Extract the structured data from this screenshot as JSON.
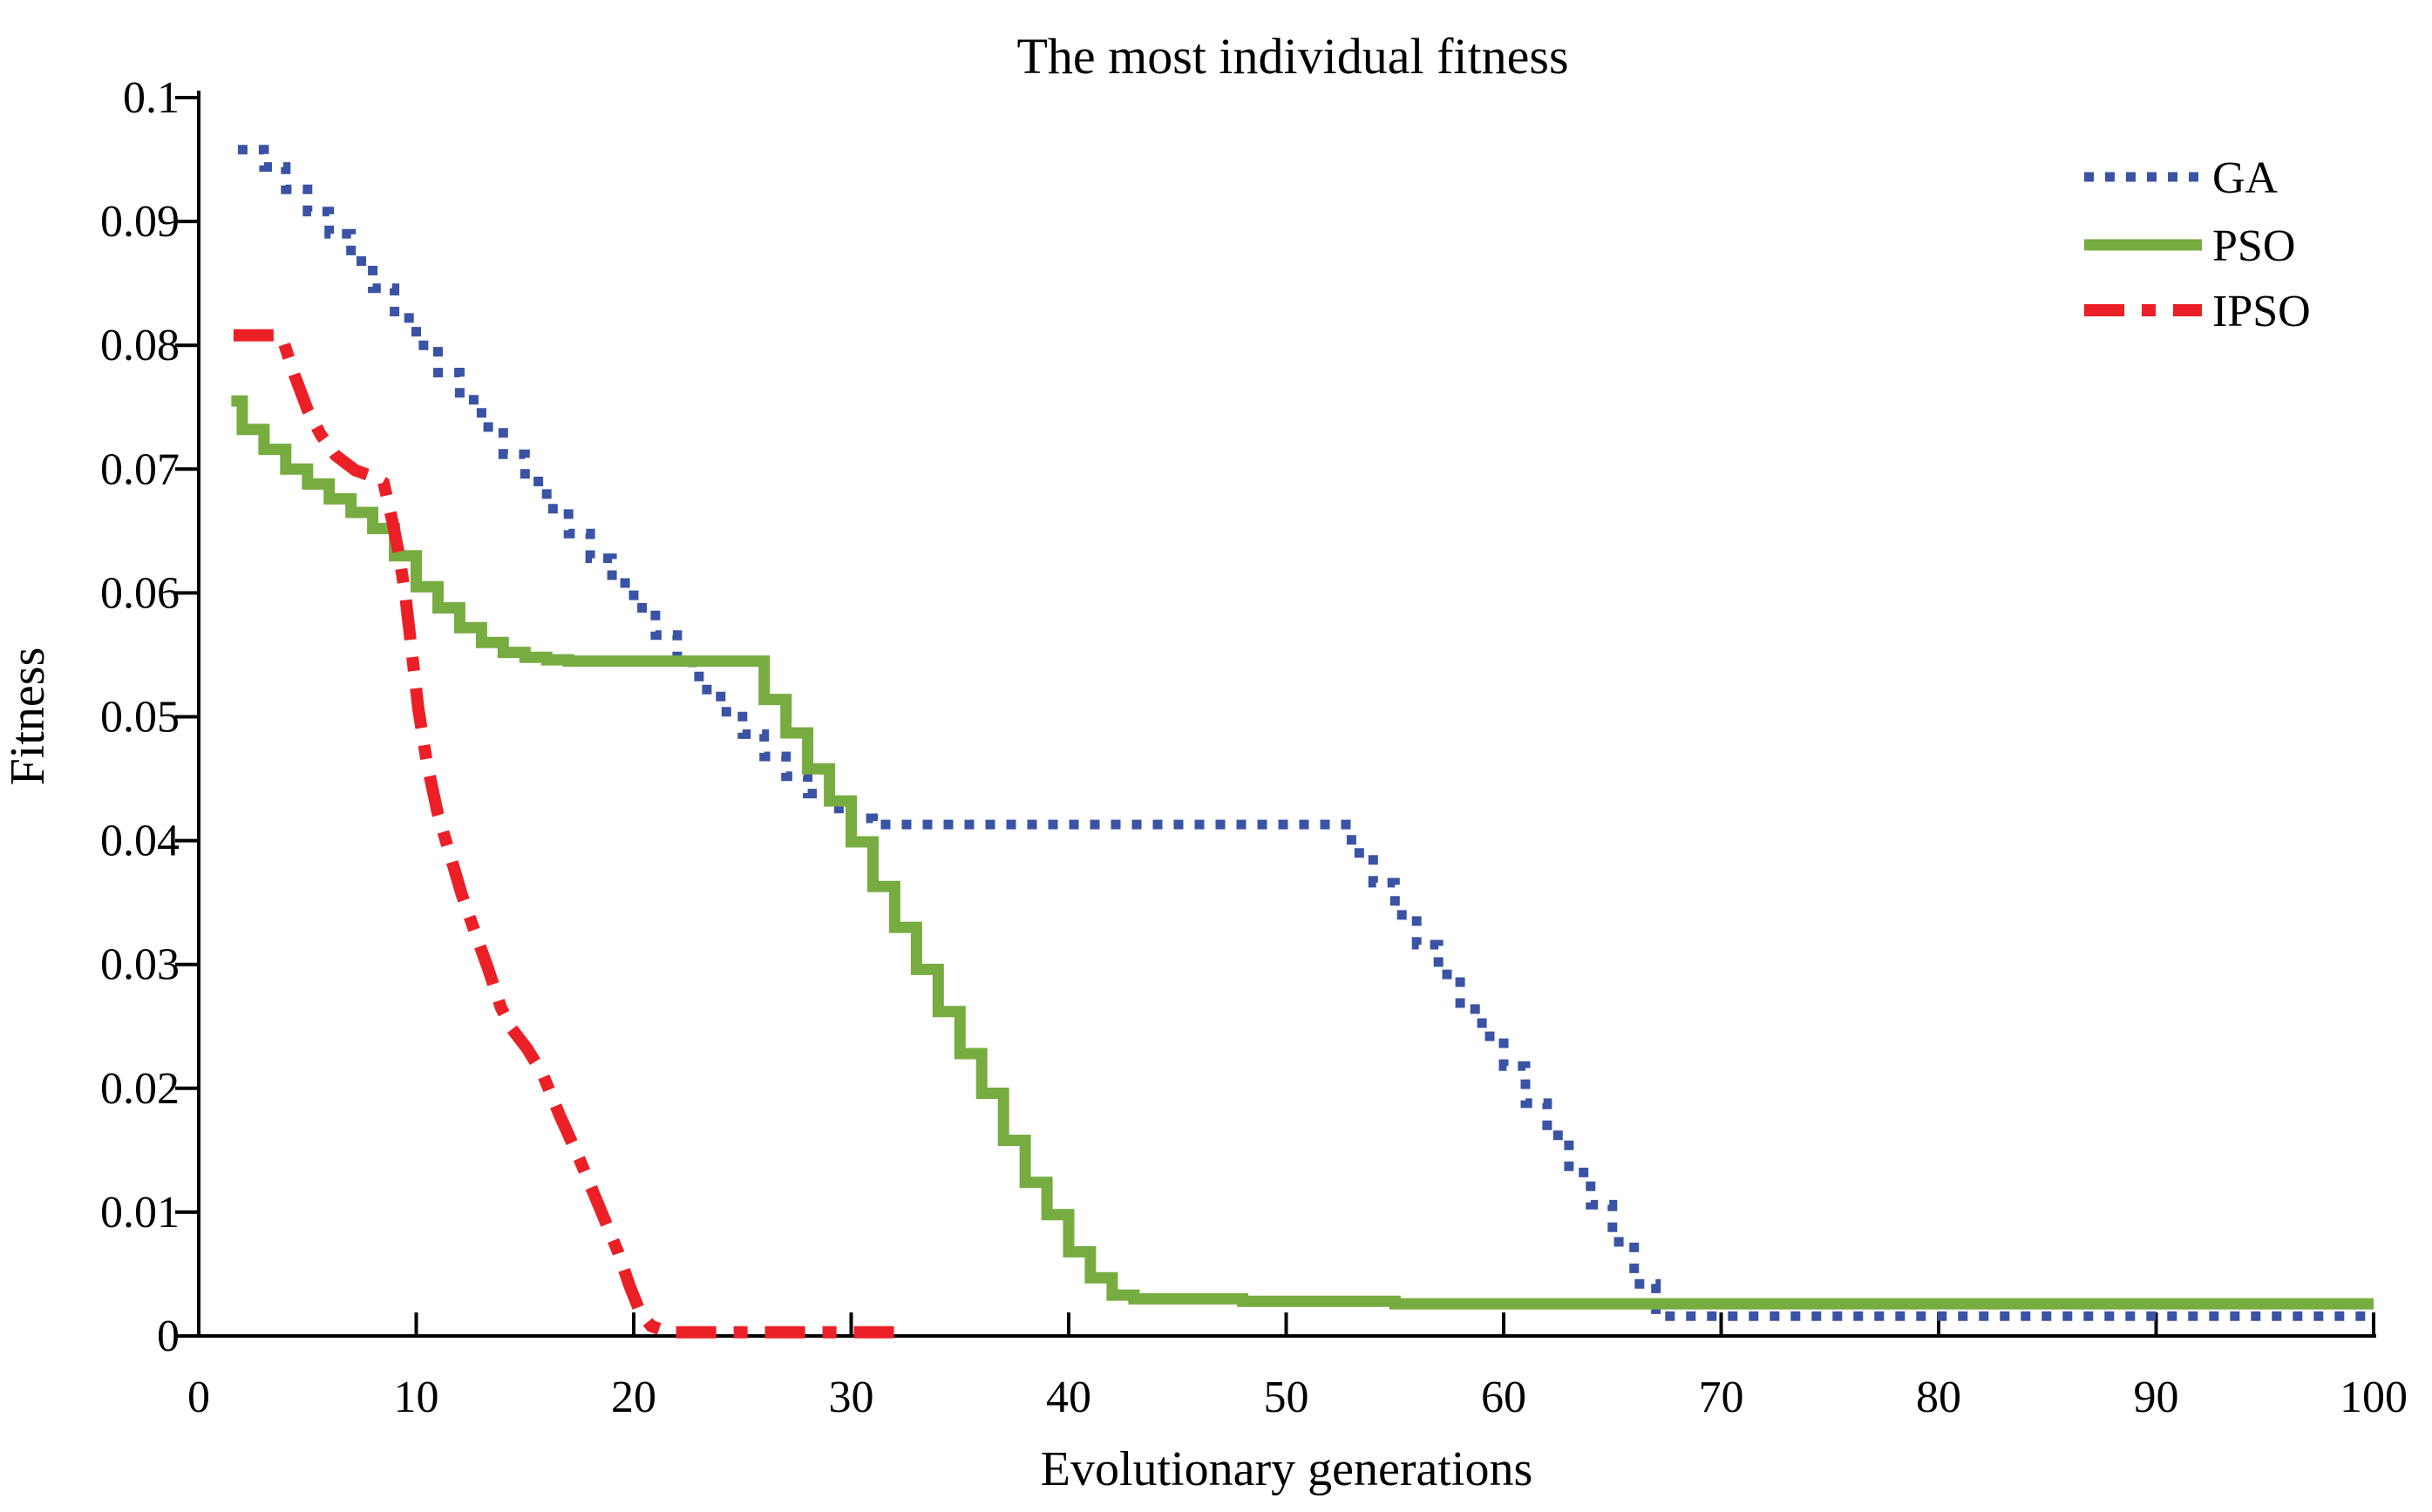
{
  "chart_data": {
    "type": "line",
    "title": "The most individual fitness",
    "xlabel": "Evolutionary generations",
    "ylabel": "Fitness",
    "xlim": [
      0,
      100
    ],
    "ylim": [
      0,
      0.1
    ],
    "xticks": [
      0,
      10,
      20,
      30,
      40,
      50,
      60,
      70,
      80,
      90,
      100
    ],
    "yticks": [
      0,
      0.01,
      0.02,
      0.03,
      0.04,
      0.05,
      0.06,
      0.07,
      0.08,
      0.09,
      0.1
    ],
    "ytick_labels": [
      "0",
      "0.01",
      "0.02",
      "0.03",
      "0.04",
      "0.05",
      "0.06",
      "0.07",
      "0.08",
      "0.09",
      "0.1"
    ],
    "grid": false,
    "legend_position": "top-right-inside-no-box",
    "axis_color": "#000000",
    "background_color": "#ffffff",
    "series": [
      {
        "name": "GA",
        "color": "#3A53A4",
        "line_style": "dotted",
        "dash": "11 13",
        "width": 11,
        "step": true,
        "points": [
          [
            1.8,
            0.0958
          ],
          [
            3,
            0.0944
          ],
          [
            4,
            0.0926
          ],
          [
            5,
            0.0908
          ],
          [
            6,
            0.089
          ],
          [
            7,
            0.0868
          ],
          [
            8,
            0.0846
          ],
          [
            9,
            0.0822
          ],
          [
            10,
            0.08
          ],
          [
            11,
            0.0778
          ],
          [
            12,
            0.0756
          ],
          [
            13,
            0.0734
          ],
          [
            14,
            0.0712
          ],
          [
            15,
            0.069
          ],
          [
            16,
            0.0668
          ],
          [
            17,
            0.0648
          ],
          [
            18,
            0.0628
          ],
          [
            19,
            0.0608
          ],
          [
            20,
            0.0588
          ],
          [
            21,
            0.0566
          ],
          [
            22,
            0.0544
          ],
          [
            23,
            0.0522
          ],
          [
            24,
            0.0504
          ],
          [
            25,
            0.0486
          ],
          [
            26,
            0.0468
          ],
          [
            27,
            0.0452
          ],
          [
            28,
            0.0438
          ],
          [
            29,
            0.0426
          ],
          [
            30,
            0.0418
          ],
          [
            31,
            0.0413
          ],
          [
            52,
            0.0413
          ],
          [
            53,
            0.039
          ],
          [
            54,
            0.0366
          ],
          [
            55,
            0.034
          ],
          [
            56,
            0.0316
          ],
          [
            57,
            0.0292
          ],
          [
            58,
            0.0264
          ],
          [
            59,
            0.0242
          ],
          [
            60,
            0.0218
          ],
          [
            61,
            0.0188
          ],
          [
            62,
            0.0162
          ],
          [
            63,
            0.0132
          ],
          [
            64,
            0.0106
          ],
          [
            65,
            0.0076
          ],
          [
            66,
            0.0042
          ],
          [
            67,
            0.0016
          ],
          [
            100,
            0.0016
          ]
        ]
      },
      {
        "name": "PSO",
        "color": "#77AC41",
        "line_style": "solid",
        "dash": "",
        "width": 13,
        "step": true,
        "points": [
          [
            1.5,
            0.0755
          ],
          [
            2,
            0.0732
          ],
          [
            3,
            0.0716
          ],
          [
            4,
            0.07
          ],
          [
            5,
            0.0688
          ],
          [
            6,
            0.0676
          ],
          [
            7,
            0.0665
          ],
          [
            8,
            0.0652
          ],
          [
            9,
            0.063
          ],
          [
            10,
            0.0605
          ],
          [
            11,
            0.0588
          ],
          [
            12,
            0.0572
          ],
          [
            13,
            0.056
          ],
          [
            14,
            0.0552
          ],
          [
            15,
            0.0548
          ],
          [
            16,
            0.0546
          ],
          [
            17,
            0.0545
          ],
          [
            25,
            0.0545
          ],
          [
            26,
            0.0514
          ],
          [
            27,
            0.0487
          ],
          [
            28,
            0.0458
          ],
          [
            29,
            0.0432
          ],
          [
            30,
            0.0399
          ],
          [
            31,
            0.0363
          ],
          [
            32,
            0.033
          ],
          [
            33,
            0.0296
          ],
          [
            34,
            0.0262
          ],
          [
            35,
            0.0228
          ],
          [
            36,
            0.0196
          ],
          [
            37,
            0.0158
          ],
          [
            38,
            0.0124
          ],
          [
            39,
            0.0098
          ],
          [
            40,
            0.0068
          ],
          [
            41,
            0.0047
          ],
          [
            42,
            0.0033
          ],
          [
            43,
            0.003
          ],
          [
            48,
            0.0028
          ],
          [
            55,
            0.0026
          ],
          [
            100,
            0.0026
          ]
        ]
      },
      {
        "name": "IPSO",
        "color": "#EB2026",
        "line_style": "dash-dot",
        "dash": "46 20 16 20",
        "width": 14,
        "step": false,
        "points": [
          [
            1.6,
            0.0808
          ],
          [
            3.8,
            0.0808
          ],
          [
            4.4,
            0.0776
          ],
          [
            5.0,
            0.0748
          ],
          [
            5.6,
            0.0728
          ],
          [
            6.3,
            0.0711
          ],
          [
            7.2,
            0.0699
          ],
          [
            8.0,
            0.0694
          ],
          [
            8.5,
            0.0689
          ],
          [
            8.9,
            0.0658
          ],
          [
            9.2,
            0.0632
          ],
          [
            9.5,
            0.0598
          ],
          [
            9.8,
            0.0552
          ],
          [
            10.1,
            0.0506
          ],
          [
            10.5,
            0.0462
          ],
          [
            11.0,
            0.0421
          ],
          [
            11.6,
            0.0386
          ],
          [
            12.1,
            0.0356
          ],
          [
            12.7,
            0.0326
          ],
          [
            13.3,
            0.0297
          ],
          [
            13.9,
            0.0265
          ],
          [
            14.4,
            0.0248
          ],
          [
            15.1,
            0.0232
          ],
          [
            15.8,
            0.0212
          ],
          [
            16.6,
            0.0178
          ],
          [
            17.5,
            0.0143
          ],
          [
            18.4,
            0.0105
          ],
          [
            19.3,
            0.0067
          ],
          [
            19.8,
            0.0041
          ],
          [
            20.3,
            0.0019
          ],
          [
            20.8,
            0.0008
          ],
          [
            21.6,
            0.0003
          ],
          [
            32.2,
            0.0003
          ]
        ]
      }
    ]
  }
}
